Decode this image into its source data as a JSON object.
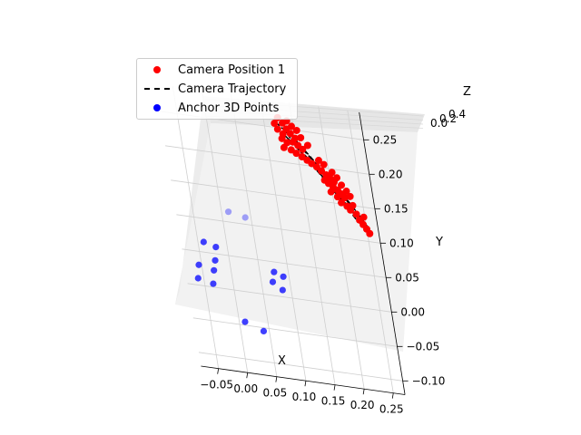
{
  "chart_data": {
    "type": "scatter",
    "projection": "3d",
    "xlabel": "X",
    "ylabel": "Y",
    "zlabel": "Z",
    "x_ticks": [
      "−0.05",
      "0.00",
      "0.05",
      "0.10",
      "0.15",
      "0.20",
      "0.25"
    ],
    "y_ticks": [
      "−0.10",
      "−0.05",
      "0.00",
      "0.05",
      "0.10",
      "0.15",
      "0.20",
      "0.25"
    ],
    "z_ticks": [
      "0.0",
      "0.2",
      "0.4"
    ],
    "xlim": [
      -0.08,
      0.27
    ],
    "ylim": [
      -0.12,
      0.29
    ],
    "grid": true,
    "legend_position": "top-left",
    "series": [
      {
        "name": "Camera Position 1",
        "kind": "scatter",
        "color": "#ff0000",
        "points": [
          {
            "x": 0.125,
            "y": 0.265
          },
          {
            "x": 0.132,
            "y": 0.258
          },
          {
            "x": 0.14,
            "y": 0.262
          },
          {
            "x": 0.147,
            "y": 0.255
          },
          {
            "x": 0.122,
            "y": 0.248
          },
          {
            "x": 0.13,
            "y": 0.242
          },
          {
            "x": 0.137,
            "y": 0.25
          },
          {
            "x": 0.143,
            "y": 0.244
          },
          {
            "x": 0.15,
            "y": 0.238
          },
          {
            "x": 0.127,
            "y": 0.235
          },
          {
            "x": 0.135,
            "y": 0.23
          },
          {
            "x": 0.145,
            "y": 0.232
          },
          {
            "x": 0.153,
            "y": 0.228
          },
          {
            "x": 0.16,
            "y": 0.223
          },
          {
            "x": 0.14,
            "y": 0.22
          },
          {
            "x": 0.148,
            "y": 0.216
          },
          {
            "x": 0.157,
            "y": 0.212
          },
          {
            "x": 0.165,
            "y": 0.208
          },
          {
            "x": 0.172,
            "y": 0.204
          },
          {
            "x": 0.18,
            "y": 0.2
          },
          {
            "x": 0.187,
            "y": 0.195
          },
          {
            "x": 0.194,
            "y": 0.19
          },
          {
            "x": 0.2,
            "y": 0.186
          },
          {
            "x": 0.206,
            "y": 0.181
          },
          {
            "x": 0.196,
            "y": 0.178
          },
          {
            "x": 0.19,
            "y": 0.182
          },
          {
            "x": 0.203,
            "y": 0.174
          },
          {
            "x": 0.21,
            "y": 0.17
          },
          {
            "x": 0.215,
            "y": 0.165
          },
          {
            "x": 0.22,
            "y": 0.16
          },
          {
            "x": 0.208,
            "y": 0.16
          },
          {
            "x": 0.198,
            "y": 0.166
          },
          {
            "x": 0.213,
            "y": 0.152
          },
          {
            "x": 0.222,
            "y": 0.148
          },
          {
            "x": 0.227,
            "y": 0.143
          },
          {
            "x": 0.232,
            "y": 0.15
          },
          {
            "x": 0.236,
            "y": 0.138
          },
          {
            "x": 0.24,
            "y": 0.13
          },
          {
            "x": 0.245,
            "y": 0.124
          },
          {
            "x": 0.25,
            "y": 0.118
          },
          {
            "x": 0.254,
            "y": 0.112
          },
          {
            "x": 0.248,
            "y": 0.135
          },
          {
            "x": 0.218,
            "y": 0.178
          },
          {
            "x": 0.225,
            "y": 0.17
          },
          {
            "x": 0.23,
            "y": 0.163
          },
          {
            "x": 0.205,
            "y": 0.195
          },
          {
            "x": 0.212,
            "y": 0.188
          },
          {
            "x": 0.185,
            "y": 0.21
          },
          {
            "x": 0.193,
            "y": 0.205
          },
          {
            "x": 0.16,
            "y": 0.24
          },
          {
            "x": 0.155,
            "y": 0.25
          },
          {
            "x": 0.128,
            "y": 0.222
          },
          {
            "x": 0.118,
            "y": 0.256
          },
          {
            "x": 0.17,
            "y": 0.23
          }
        ]
      },
      {
        "name": "Camera Trajectory",
        "kind": "line",
        "color": "#000000",
        "dashed": true,
        "points": [
          {
            "x": 0.12,
            "y": 0.258
          },
          {
            "x": 0.15,
            "y": 0.236
          },
          {
            "x": 0.185,
            "y": 0.2
          },
          {
            "x": 0.215,
            "y": 0.168
          },
          {
            "x": 0.24,
            "y": 0.138
          },
          {
            "x": 0.256,
            "y": 0.112
          },
          {
            "x": 0.228,
            "y": 0.142
          },
          {
            "x": 0.195,
            "y": 0.178
          },
          {
            "x": 0.16,
            "y": 0.218
          },
          {
            "x": 0.128,
            "y": 0.244
          },
          {
            "x": 0.145,
            "y": 0.23
          },
          {
            "x": 0.178,
            "y": 0.196
          },
          {
            "x": 0.21,
            "y": 0.16
          },
          {
            "x": 0.236,
            "y": 0.128
          },
          {
            "x": 0.25,
            "y": 0.118
          },
          {
            "x": 0.222,
            "y": 0.15
          },
          {
            "x": 0.188,
            "y": 0.186
          },
          {
            "x": 0.152,
            "y": 0.224
          },
          {
            "x": 0.132,
            "y": 0.25
          },
          {
            "x": 0.17,
            "y": 0.214
          },
          {
            "x": 0.205,
            "y": 0.176
          },
          {
            "x": 0.232,
            "y": 0.146
          },
          {
            "x": 0.252,
            "y": 0.122
          }
        ]
      },
      {
        "name": "Anchor 3D Points",
        "kind": "scatter",
        "color": "#0000ff",
        "points": [
          {
            "x": 0.012,
            "y": 0.115,
            "alpha": 0.35
          },
          {
            "x": 0.04,
            "y": 0.11,
            "alpha": 0.35
          },
          {
            "x": -0.04,
            "y": 0.065
          },
          {
            "x": -0.02,
            "y": 0.06
          },
          {
            "x": -0.025,
            "y": 0.04
          },
          {
            "x": -0.055,
            "y": 0.03
          },
          {
            "x": -0.03,
            "y": 0.025
          },
          {
            "x": -0.06,
            "y": 0.01
          },
          {
            "x": -0.035,
            "y": 0.005
          },
          {
            "x": 0.075,
            "y": 0.035
          },
          {
            "x": 0.09,
            "y": 0.03
          },
          {
            "x": 0.07,
            "y": 0.02
          },
          {
            "x": 0.085,
            "y": 0.01
          },
          {
            "x": 0.01,
            "y": -0.045
          },
          {
            "x": 0.04,
            "y": -0.055
          }
        ]
      }
    ]
  }
}
